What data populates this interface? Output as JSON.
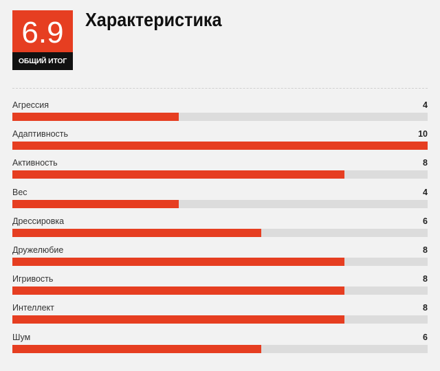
{
  "summary": {
    "score": "6.9",
    "score_label": "ОБЩИЙ ИТОГ",
    "title": "Характеристика"
  },
  "colors": {
    "accent": "#e63e21",
    "track": "#dcdcdc",
    "label_bg": "#111111",
    "background": "#f2f2f2"
  },
  "scale_max": 10,
  "ratings": [
    {
      "label": "Агрессия",
      "value": 4
    },
    {
      "label": "Адаптивность",
      "value": 10
    },
    {
      "label": "Активность",
      "value": 8
    },
    {
      "label": "Вес",
      "value": 4
    },
    {
      "label": "Дрессировка",
      "value": 6
    },
    {
      "label": "Дружелюбие",
      "value": 8
    },
    {
      "label": "Игривость",
      "value": 8
    },
    {
      "label": "Интеллект",
      "value": 8
    },
    {
      "label": "Шум",
      "value": 6
    }
  ]
}
